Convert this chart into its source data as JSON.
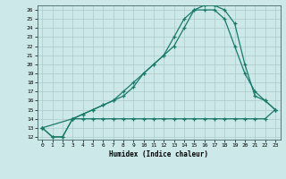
{
  "xlabel": "Humidex (Indice chaleur)",
  "bg_color": "#cce8e8",
  "grid_color": "#aacccc",
  "line_color": "#1a7a6a",
  "xlim": [
    -0.5,
    23.5
  ],
  "ylim": [
    11.7,
    26.5
  ],
  "yticks": [
    12,
    13,
    14,
    15,
    16,
    17,
    18,
    19,
    20,
    21,
    22,
    23,
    24,
    25,
    26
  ],
  "xticks": [
    0,
    1,
    2,
    3,
    4,
    5,
    6,
    7,
    8,
    9,
    10,
    11,
    12,
    13,
    14,
    15,
    16,
    17,
    18,
    19,
    20,
    21,
    22,
    23
  ],
  "series1_x": [
    0,
    1,
    2,
    3,
    4,
    5,
    6,
    7,
    8,
    9,
    10,
    11,
    12,
    13,
    14,
    15,
    16,
    17,
    18,
    19,
    20,
    21,
    22,
    23
  ],
  "series1_y": [
    13,
    12,
    12,
    14,
    14,
    14,
    14,
    14,
    14,
    14,
    14,
    14,
    14,
    14,
    14,
    14,
    14,
    14,
    14,
    14,
    14,
    14,
    14,
    15
  ],
  "series2_x": [
    0,
    1,
    2,
    3,
    4,
    5,
    6,
    7,
    8,
    9,
    10,
    11,
    12,
    13,
    14,
    15,
    16,
    17,
    18,
    19,
    20,
    21,
    22,
    23
  ],
  "series2_y": [
    13,
    12,
    12,
    14,
    14.5,
    15,
    15.5,
    16,
    17,
    18,
    19,
    20,
    21,
    22,
    24,
    26,
    26,
    26,
    25,
    22,
    19,
    17,
    16,
    15
  ],
  "series3_x": [
    0,
    3,
    4,
    5,
    6,
    7,
    8,
    9,
    10,
    11,
    12,
    13,
    14,
    15,
    16,
    17,
    18,
    19,
    20,
    21,
    22,
    23
  ],
  "series3_y": [
    13,
    14,
    14.5,
    15,
    15.5,
    16,
    16.5,
    17.5,
    19,
    20,
    21,
    23,
    25,
    26,
    26.5,
    26.5,
    26,
    24.5,
    20,
    16.5,
    16,
    15
  ]
}
